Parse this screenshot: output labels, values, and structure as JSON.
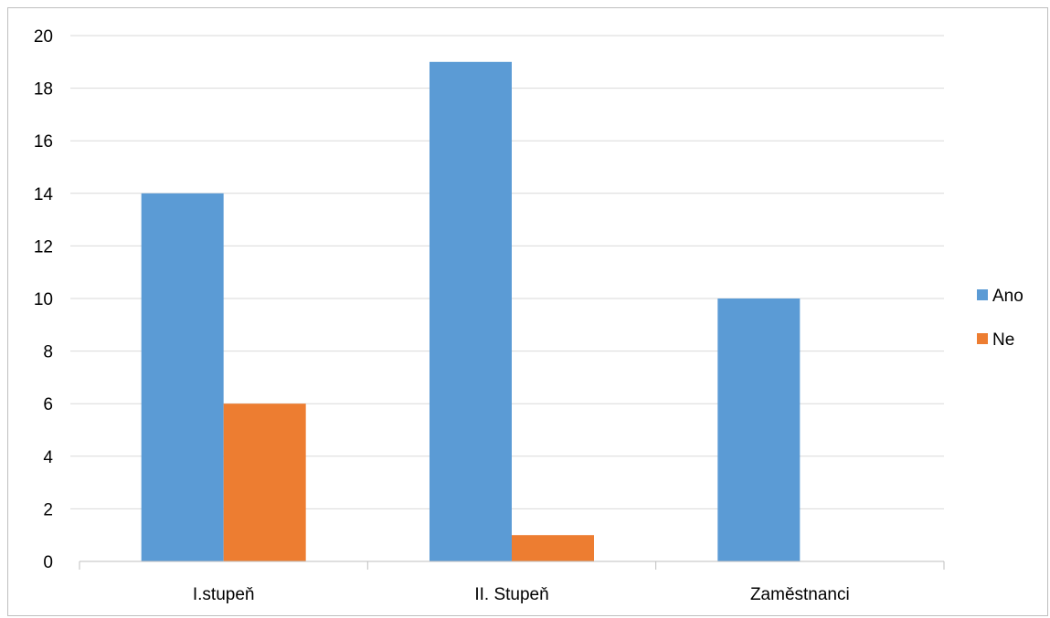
{
  "chart_data": {
    "type": "bar",
    "categories": [
      "I.stupeň",
      "II. Stupeň",
      "Zaměstnanci"
    ],
    "series": [
      {
        "name": "Ano",
        "values": [
          14,
          19,
          10
        ],
        "color": "#5B9BD5"
      },
      {
        "name": "Ne",
        "values": [
          6,
          1,
          0
        ],
        "color": "#ED7D31"
      }
    ],
    "ylim": [
      0,
      20
    ],
    "yticks": [
      0,
      2,
      4,
      6,
      8,
      10,
      12,
      14,
      16,
      18,
      20
    ],
    "grid": true,
    "legend_position": "right",
    "colors": {
      "gridline": "#d9d9d9",
      "axis": "#bfbfbf",
      "frame": "#bfbfbf"
    }
  }
}
